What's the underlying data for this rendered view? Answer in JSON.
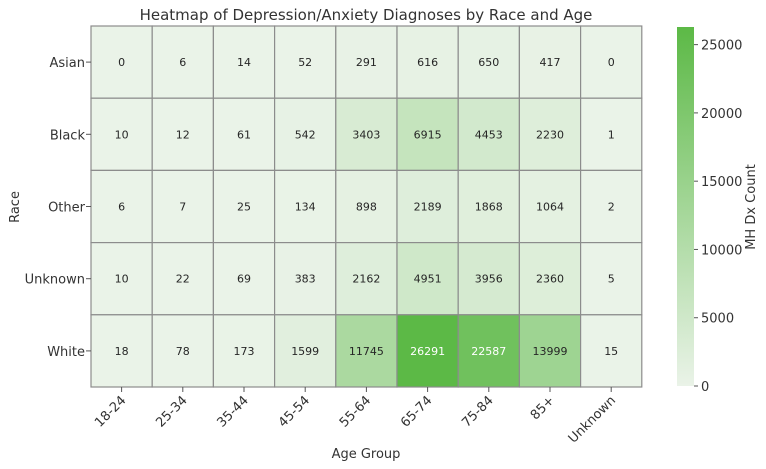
{
  "chart_data": {
    "type": "heatmap",
    "title": "Heatmap of Depression/Anxiety Diagnoses by Race and Age",
    "xlabel": "Age Group",
    "ylabel": "Race",
    "x_categories": [
      "18-24",
      "25-34",
      "35-44",
      "45-54",
      "55-64",
      "65-74",
      "75-84",
      "85+",
      "Unknown"
    ],
    "y_categories": [
      "Asian",
      "Black",
      "Other",
      "Unknown",
      "White"
    ],
    "values": [
      [
        0,
        6,
        14,
        52,
        291,
        616,
        650,
        417,
        0
      ],
      [
        10,
        12,
        61,
        542,
        3403,
        6915,
        4453,
        2230,
        1
      ],
      [
        6,
        7,
        25,
        134,
        898,
        2189,
        1868,
        1064,
        2
      ],
      [
        10,
        22,
        69,
        383,
        2162,
        4951,
        3956,
        2360,
        5
      ],
      [
        18,
        78,
        173,
        1599,
        11745,
        26291,
        22587,
        13999,
        15
      ]
    ],
    "colorbar": {
      "label": "MH Dx Count",
      "min": 0,
      "max": 26291,
      "ticks": [
        0,
        5000,
        10000,
        15000,
        20000,
        25000
      ],
      "color_low": "#eaf3e8",
      "color_high": "#5cb946"
    },
    "cell_border_color": "#8c8c8c",
    "grid": false,
    "legend": "right"
  }
}
